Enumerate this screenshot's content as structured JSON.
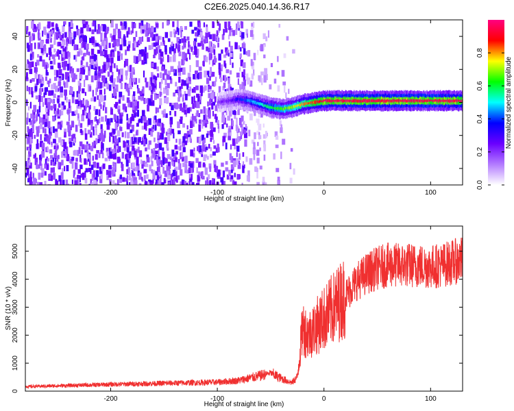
{
  "title": "C2E6.2025.040.14.36.R17",
  "chart_data": [
    {
      "type": "heatmap",
      "xlabel": "Height of straight line (km)",
      "ylabel": "Frequency (Hz)",
      "xlim": [
        -280,
        130
      ],
      "ylim": [
        -50,
        50
      ],
      "xticks": [
        -200,
        -100,
        0,
        100
      ],
      "yticks": [
        -40,
        -20,
        0,
        20,
        40
      ],
      "colorbar": {
        "label": "Normalized spectral amplitude",
        "range": [
          0,
          1
        ],
        "ticks": [
          "0.0",
          "0.2",
          "0.4",
          "0.6",
          "0.8"
        ],
        "colors": [
          "#ffffff",
          "#b37bff",
          "#6a00ff",
          "#0000ff",
          "#00ffff",
          "#00ff00",
          "#ffff00",
          "#ff0000",
          "#ff0080"
        ]
      },
      "ridge": {
        "x": [
          -100,
          -90,
          -80,
          -70,
          -60,
          -50,
          -40,
          -30,
          -20,
          -10,
          0,
          20,
          40,
          60,
          80,
          100,
          130
        ],
        "frequency": [
          0,
          1,
          2,
          1,
          -1,
          -3,
          -4,
          -3,
          -1,
          0,
          1,
          1,
          1,
          1,
          1,
          1,
          1
        ],
        "amplitude": [
          0.2,
          0.25,
          0.35,
          0.45,
          0.5,
          0.6,
          0.65,
          0.7,
          0.8,
          0.85,
          0.95,
          0.95,
          0.95,
          0.95,
          0.95,
          0.95,
          0.95
        ]
      }
    },
    {
      "type": "line",
      "xlabel": "Height of straight line (km)",
      "ylabel": "SNR (10 * v/v)",
      "xlim": [
        -280,
        130
      ],
      "ylim": [
        0,
        5900
      ],
      "xticks": [
        -200,
        -100,
        0,
        100
      ],
      "yticks": [
        0,
        1000,
        2000,
        3000,
        4000,
        5000
      ],
      "color": "#f03030",
      "x": [
        -280,
        -250,
        -200,
        -150,
        -100,
        -80,
        -60,
        -50,
        -40,
        -30,
        -25,
        -20,
        -15,
        -10,
        0,
        10,
        20,
        30,
        40,
        50,
        60,
        80,
        100,
        110,
        120,
        130
      ],
      "values": [
        160,
        190,
        240,
        280,
        320,
        380,
        550,
        650,
        450,
        300,
        500,
        2300,
        2000,
        2200,
        2600,
        3000,
        3400,
        3900,
        4200,
        4400,
        4500,
        4500,
        4450,
        4500,
        4600,
        4700
      ]
    }
  ]
}
